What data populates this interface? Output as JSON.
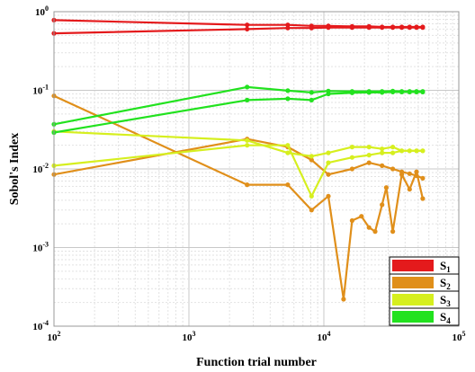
{
  "chart_data": {
    "type": "line",
    "xlabel": "Function trial number",
    "ylabel": "Sobol's Index",
    "xscale": "log",
    "yscale": "log",
    "xlim": [
      100,
      100000
    ],
    "ylim": [
      0.0001,
      1
    ],
    "grid": true,
    "legend_position": "bottom-right",
    "x_ticks": [
      {
        "base": "10",
        "exp": "2"
      },
      {
        "base": "10",
        "exp": "3"
      },
      {
        "base": "10",
        "exp": "4"
      },
      {
        "base": "10",
        "exp": "5"
      }
    ],
    "y_ticks": [
      {
        "base": "10",
        "exp": "0"
      },
      {
        "base": "10",
        "exp": "-1"
      },
      {
        "base": "10",
        "exp": "-2"
      },
      {
        "base": "10",
        "exp": "-3"
      },
      {
        "base": "10",
        "exp": "-4"
      }
    ],
    "series": [
      {
        "name": "S",
        "sub": "1",
        "color": "#e41a1c",
        "lines": [
          {
            "x": [
              100,
              2700,
              5400,
              8100,
              10800,
              16200,
              21600,
              27000,
              32400,
              37800,
              43200,
              48600,
              54000
            ],
            "y": [
              0.78,
              0.68,
              0.68,
              0.66,
              0.66,
              0.65,
              0.65,
              0.64,
              0.64,
              0.64,
              0.64,
              0.64,
              0.64
            ]
          },
          {
            "x": [
              100,
              2700,
              5400,
              8100,
              10800,
              16200,
              21600,
              27000,
              32400,
              37800,
              43200,
              48600,
              54000
            ],
            "y": [
              0.53,
              0.6,
              0.62,
              0.62,
              0.63,
              0.63,
              0.63,
              0.63,
              0.63,
              0.63,
              0.63,
              0.63,
              0.63
            ]
          }
        ]
      },
      {
        "name": "S",
        "sub": "2",
        "color": "#e08f1a",
        "lines": [
          {
            "x": [
              100,
              2700,
              5400,
              8100,
              10800,
              16200,
              21600,
              27000,
              32400,
              37800,
              43200,
              48600,
              54000
            ],
            "y": [
              0.0085,
              0.024,
              0.019,
              0.013,
              0.0085,
              0.01,
              0.012,
              0.011,
              0.01,
              0.0092,
              0.0087,
              0.0082,
              0.0076
            ]
          },
          {
            "x": [
              100,
              2700,
              5400,
              8100,
              10800,
              14000,
              16200,
              19000,
              21600,
              24000,
              27000,
              29000,
              32400,
              37800,
              43200,
              48600,
              54000
            ],
            "y": [
              0.085,
              0.0063,
              0.0063,
              0.003,
              0.0045,
              0.00022,
              0.0022,
              0.0025,
              0.0018,
              0.0016,
              0.0035,
              0.0058,
              0.0016,
              0.0085,
              0.0055,
              0.0092,
              0.0042
            ]
          }
        ]
      },
      {
        "name": "S",
        "sub": "3",
        "color": "#d6ef1f",
        "lines": [
          {
            "x": [
              100,
              2700,
              5400,
              8100,
              10800,
              16200,
              21600,
              27000,
              32400,
              37800,
              43200,
              48600,
              54000
            ],
            "y": [
              0.011,
              0.02,
              0.02,
              0.0045,
              0.012,
              0.014,
              0.015,
              0.016,
              0.016,
              0.017,
              0.017,
              0.017,
              0.017
            ]
          },
          {
            "x": [
              100,
              2700,
              5400,
              8100,
              10800,
              16200,
              21600,
              27000,
              32400,
              37800,
              43200,
              48600,
              54000
            ],
            "y": [
              0.03,
              0.023,
              0.016,
              0.0145,
              0.016,
              0.019,
              0.019,
              0.018,
              0.019,
              0.017,
              0.017,
              0.017,
              0.017
            ]
          }
        ]
      },
      {
        "name": "S",
        "sub": "4",
        "color": "#22e21f",
        "lines": [
          {
            "x": [
              100,
              2700,
              5400,
              8100,
              10800,
              16200,
              21600,
              27000,
              32400,
              37800,
              43200,
              48600,
              54000
            ],
            "y": [
              0.037,
              0.11,
              0.099,
              0.094,
              0.098,
              0.097,
              0.097,
              0.097,
              0.098,
              0.097,
              0.097,
              0.097,
              0.097
            ]
          },
          {
            "x": [
              100,
              2700,
              5400,
              8100,
              10800,
              16200,
              21600,
              27000,
              32400,
              37800,
              43200,
              48600,
              54000
            ],
            "y": [
              0.029,
              0.075,
              0.078,
              0.075,
              0.09,
              0.093,
              0.094,
              0.094,
              0.095,
              0.095,
              0.095,
              0.095,
              0.095
            ]
          }
        ]
      }
    ]
  }
}
